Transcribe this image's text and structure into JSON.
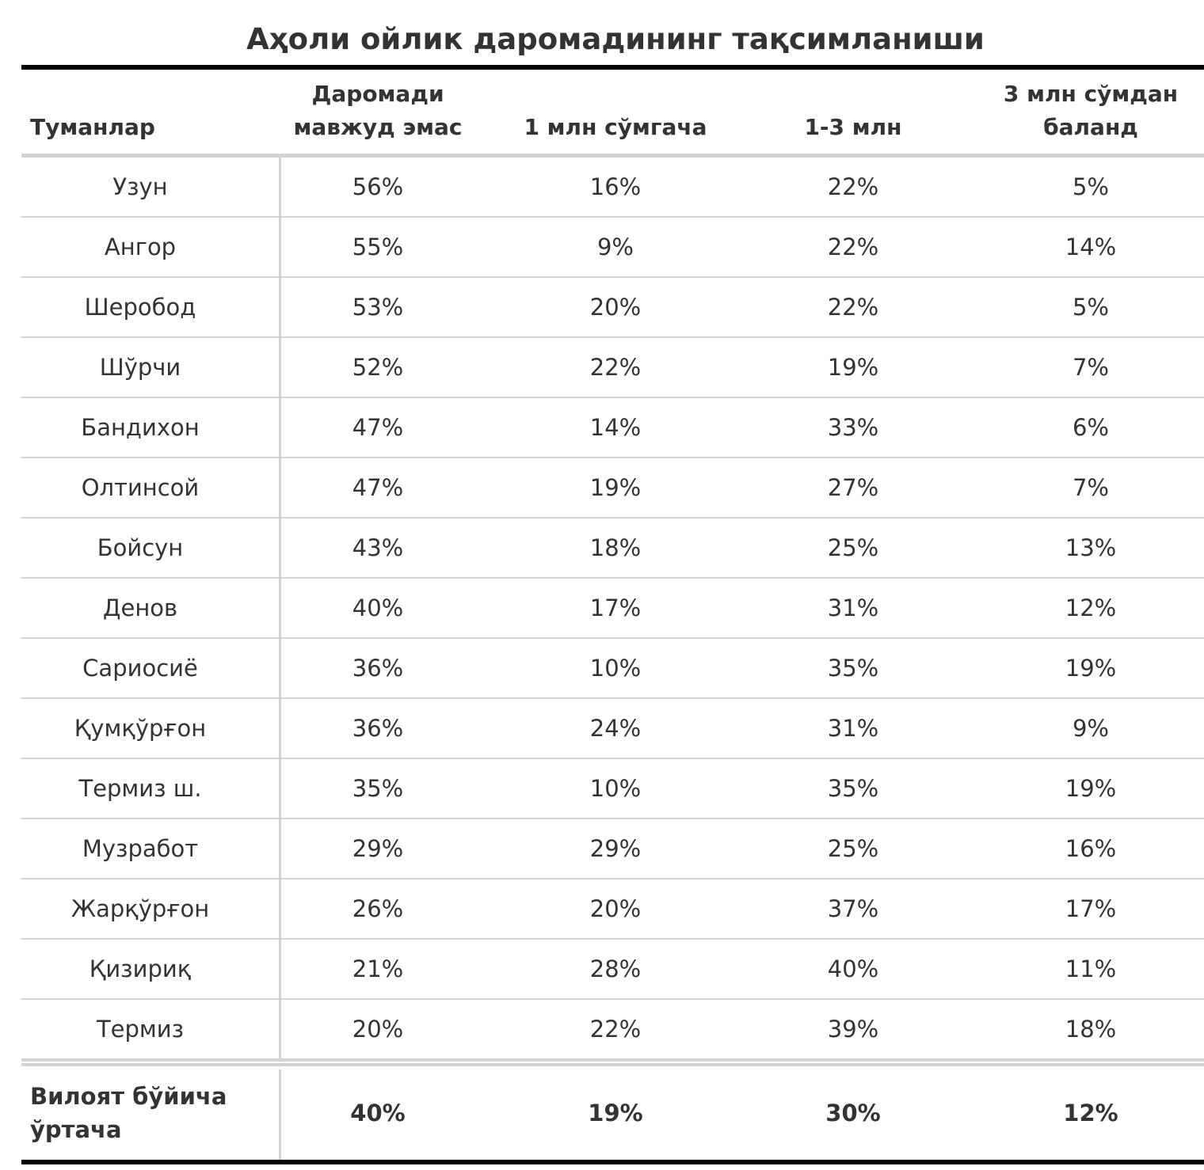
{
  "chart_data": {
    "type": "table",
    "title": "Аҳоли ойлик даромадининг тақсимланиши",
    "columns": [
      "Туманлар",
      "Даромади мавжуд эмас",
      "1 млн сўмгача",
      "1-3 млн",
      "3 млн сўмдан баланд"
    ],
    "rows": [
      [
        "Узун",
        "56%",
        "16%",
        "22%",
        "5%"
      ],
      [
        "Ангор",
        "55%",
        "9%",
        "22%",
        "14%"
      ],
      [
        "Шеробод",
        "53%",
        "20%",
        "22%",
        "5%"
      ],
      [
        "Шўрчи",
        "52%",
        "22%",
        "19%",
        "7%"
      ],
      [
        "Бандихон",
        "47%",
        "14%",
        "33%",
        "6%"
      ],
      [
        "Олтинсой",
        "47%",
        "19%",
        "27%",
        "7%"
      ],
      [
        "Бойсун",
        "43%",
        "18%",
        "25%",
        "13%"
      ],
      [
        "Денов",
        "40%",
        "17%",
        "31%",
        "12%"
      ],
      [
        "Сариосиё",
        "36%",
        "10%",
        "35%",
        "19%"
      ],
      [
        "Қумқўрғон",
        "36%",
        "24%",
        "31%",
        "9%"
      ],
      [
        "Термиз ш.",
        "35%",
        "10%",
        "35%",
        "19%"
      ],
      [
        "Музработ",
        "29%",
        "29%",
        "25%",
        "16%"
      ],
      [
        "Жарқўрғон",
        "26%",
        "20%",
        "37%",
        "17%"
      ],
      [
        "Қизириқ",
        "21%",
        "28%",
        "40%",
        "11%"
      ],
      [
        "Термиз",
        "20%",
        "22%",
        "39%",
        "18%"
      ]
    ],
    "footer": [
      "Вилоят бўйича ўртача",
      "40%",
      "19%",
      "30%",
      "12%"
    ]
  }
}
